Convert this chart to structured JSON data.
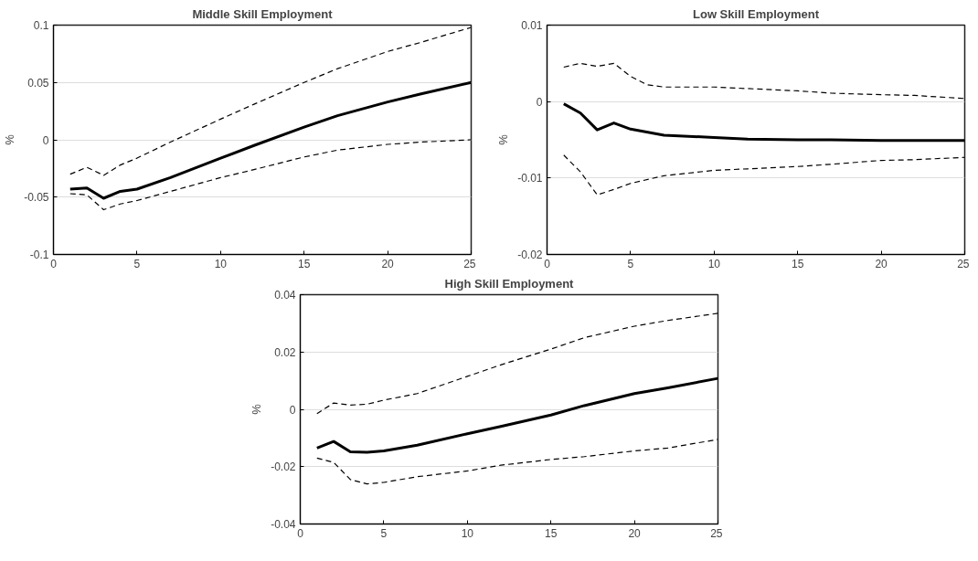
{
  "chart_data": [
    {
      "type": "line",
      "title": "Middle Skill Employment",
      "ylabel": "%",
      "xlim": [
        0,
        25
      ],
      "xticks": [
        0,
        5,
        10,
        15,
        20,
        25
      ],
      "ylim": [
        -0.1,
        0.1
      ],
      "yticks": [
        -0.1,
        -0.05,
        0,
        0.05,
        0.1
      ],
      "grid": "y",
      "series": [
        {
          "color": "#000000",
          "line_style": "dashed",
          "x": [
            1,
            2,
            3,
            4,
            5,
            7,
            10,
            12,
            15,
            17,
            20,
            22,
            25
          ],
          "values": [
            -0.03,
            -0.024,
            -0.031,
            -0.022,
            -0.016,
            -0.002,
            0.018,
            0.031,
            0.05,
            0.062,
            0.077,
            0.085,
            0.098
          ]
        },
        {
          "color": "#000000",
          "line_style": "solid",
          "x": [
            1,
            2,
            3,
            4,
            5,
            7,
            10,
            12,
            15,
            17,
            20,
            22,
            25
          ],
          "values": [
            -0.043,
            -0.042,
            -0.051,
            -0.045,
            -0.043,
            -0.033,
            -0.016,
            -0.005,
            0.011,
            0.021,
            0.033,
            0.04,
            0.05
          ]
        },
        {
          "color": "#000000",
          "line_style": "dashed",
          "x": [
            1,
            2,
            3,
            4,
            5,
            7,
            10,
            12,
            15,
            17,
            20,
            22,
            25
          ],
          "values": [
            -0.047,
            -0.048,
            -0.061,
            -0.056,
            -0.053,
            -0.045,
            -0.033,
            -0.026,
            -0.015,
            -0.009,
            -0.004,
            -0.002,
            0.0
          ]
        }
      ]
    },
    {
      "type": "line",
      "title": "Low Skill Employment",
      "ylabel": "%",
      "xlim": [
        0,
        25
      ],
      "xticks": [
        0,
        5,
        10,
        15,
        20,
        25
      ],
      "ylim": [
        -0.02,
        0.01
      ],
      "yticks": [
        -0.02,
        -0.01,
        0,
        0.01
      ],
      "grid": "y",
      "series": [
        {
          "color": "#000000",
          "line_style": "dashed",
          "x": [
            1,
            2,
            3,
            4,
            5,
            6,
            7,
            10,
            12,
            15,
            17,
            20,
            22,
            25
          ],
          "values": [
            0.0045,
            0.005,
            0.0046,
            0.005,
            0.0033,
            0.0022,
            0.0019,
            0.0019,
            0.0017,
            0.0014,
            0.0011,
            0.0009,
            0.0008,
            0.0004
          ]
        },
        {
          "color": "#000000",
          "line_style": "solid",
          "x": [
            1,
            2,
            3,
            4,
            5,
            7,
            10,
            12,
            15,
            17,
            20,
            22,
            25
          ],
          "values": [
            -0.0003,
            -0.0015,
            -0.0037,
            -0.0028,
            -0.0036,
            -0.0044,
            -0.0047,
            -0.0049,
            -0.005,
            -0.005,
            -0.0051,
            -0.0051,
            -0.0051
          ]
        },
        {
          "color": "#000000",
          "line_style": "dashed",
          "x": [
            1,
            2,
            3,
            4,
            5,
            7,
            10,
            12,
            15,
            17,
            20,
            22,
            25
          ],
          "values": [
            -0.007,
            -0.0092,
            -0.0122,
            -0.0115,
            -0.0107,
            -0.0097,
            -0.009,
            -0.0088,
            -0.0085,
            -0.0082,
            -0.0077,
            -0.0076,
            -0.0073
          ]
        }
      ]
    },
    {
      "type": "line",
      "title": "High Skill Employment",
      "ylabel": "%",
      "xlim": [
        0,
        25
      ],
      "xticks": [
        0,
        5,
        10,
        15,
        20,
        25
      ],
      "ylim": [
        -0.04,
        0.04
      ],
      "yticks": [
        -0.04,
        -0.02,
        0,
        0.02,
        0.04
      ],
      "grid": "y",
      "series": [
        {
          "color": "#000000",
          "line_style": "dashed",
          "x": [
            1,
            2,
            3,
            4,
            5,
            7,
            10,
            12,
            15,
            17,
            20,
            22,
            25
          ],
          "values": [
            -0.0015,
            0.0022,
            0.0015,
            0.0018,
            0.0032,
            0.0055,
            0.0115,
            0.0155,
            0.021,
            0.025,
            0.029,
            0.031,
            0.0335
          ]
        },
        {
          "color": "#000000",
          "line_style": "solid",
          "x": [
            1,
            2,
            3,
            4,
            5,
            7,
            10,
            12,
            15,
            17,
            20,
            22,
            25
          ],
          "values": [
            -0.0135,
            -0.0112,
            -0.0148,
            -0.015,
            -0.0145,
            -0.0125,
            -0.0085,
            -0.006,
            -0.002,
            0.0013,
            0.0055,
            0.0075,
            0.0108
          ]
        },
        {
          "color": "#000000",
          "line_style": "dashed",
          "x": [
            1,
            2,
            3,
            4,
            5,
            7,
            10,
            12,
            15,
            17,
            20,
            22,
            25
          ],
          "values": [
            -0.017,
            -0.0185,
            -0.0245,
            -0.026,
            -0.0255,
            -0.0235,
            -0.0215,
            -0.0195,
            -0.0175,
            -0.0165,
            -0.0145,
            -0.0135,
            -0.0105
          ]
        }
      ]
    }
  ]
}
